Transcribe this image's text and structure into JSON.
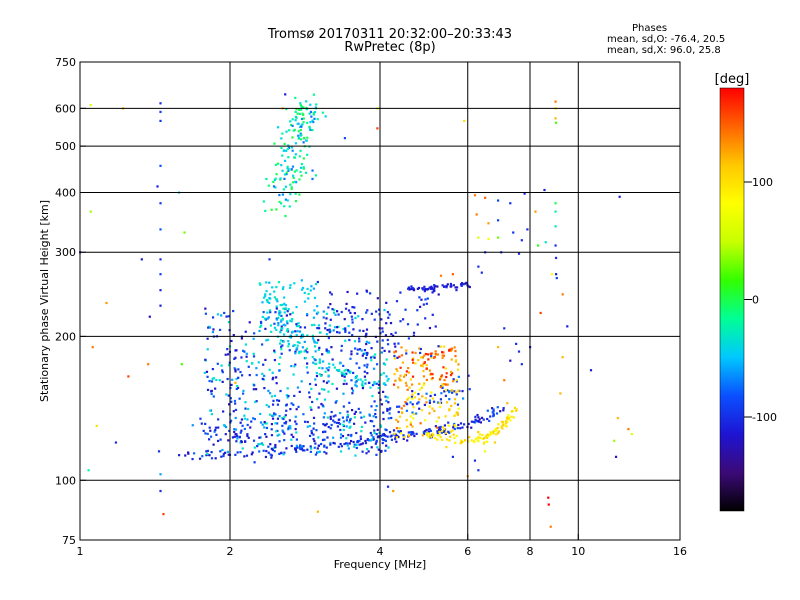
{
  "header": {
    "title_line1": "Tromsø 20170311 20:32:00–20:33:43",
    "title_line2": "RwPretec (8p)",
    "stats_title": "Phases",
    "stats_o": "mean, sd,O: -76.4, 20.5",
    "stats_x": "mean, sd,X:  96.0, 25.8"
  },
  "colorbar": {
    "unit": "[deg]",
    "min": -180,
    "max": 180,
    "ticks": [
      {
        "value": 100,
        "label": "100"
      },
      {
        "value": 0,
        "label": "0"
      },
      {
        "value": -100,
        "label": "-100"
      }
    ],
    "colormap": [
      "#000000",
      "#3c0a78",
      "#1e14d2",
      "#0a50ff",
      "#00c8ff",
      "#00ff96",
      "#32ff00",
      "#c8ff00",
      "#ffff00",
      "#ffc800",
      "#ff6400",
      "#ff0000"
    ]
  },
  "chart_data": {
    "type": "scatter",
    "xlabel": "Frequency [MHz]",
    "ylabel": "Stationary phase Virtual Height [km]",
    "xscale": "log",
    "yscale": "log",
    "xlim": [
      1,
      16
    ],
    "ylim": [
      75,
      750
    ],
    "grid": true,
    "xticks": [
      {
        "value": 1,
        "label": "1"
      },
      {
        "value": 2,
        "label": "2"
      },
      {
        "value": 4,
        "label": "4"
      },
      {
        "value": 6,
        "label": "6"
      },
      {
        "value": 8,
        "label": "8"
      },
      {
        "value": 10,
        "label": "10"
      },
      {
        "value": 16,
        "label": "16"
      }
    ],
    "yticks": [
      {
        "value": 75,
        "label": "75"
      },
      {
        "value": 100,
        "label": "100"
      },
      {
        "value": 200,
        "label": "200"
      },
      {
        "value": 300,
        "label": "300"
      },
      {
        "value": 400,
        "label": "400"
      },
      {
        "value": 500,
        "label": "500"
      },
      {
        "value": 600,
        "label": "600"
      },
      {
        "value": 750,
        "label": "750"
      }
    ],
    "xgrid": [
      2,
      4,
      6,
      8,
      10
    ],
    "ygrid": [
      100,
      200,
      300,
      400,
      500,
      600
    ],
    "color_by": "phase",
    "points": [
      [
        1.05,
        610,
        60
      ],
      [
        1.22,
        600,
        120
      ],
      [
        1.45,
        615,
        -100
      ],
      [
        1.45,
        590,
        -90
      ],
      [
        1.45,
        565,
        -95
      ],
      [
        1.45,
        455,
        -85
      ],
      [
        1.43,
        412,
        -110
      ],
      [
        1.45,
        380,
        -95
      ],
      [
        1.45,
        335,
        -80
      ],
      [
        1.45,
        290,
        -100
      ],
      [
        1.45,
        270,
        -90
      ],
      [
        1.45,
        250,
        -105
      ],
      [
        1.45,
        232,
        -110
      ],
      [
        1.58,
        400,
        -40
      ],
      [
        1.62,
        330,
        30
      ],
      [
        1.05,
        365,
        40
      ],
      [
        1.0,
        300,
        -100
      ],
      [
        1.33,
        290,
        -110
      ],
      [
        1.38,
        220,
        -120
      ],
      [
        1.37,
        175,
        140
      ],
      [
        1.25,
        165,
        160
      ],
      [
        1.06,
        190,
        140
      ],
      [
        1.13,
        235,
        130
      ],
      [
        1.6,
        175,
        20
      ],
      [
        1.08,
        130,
        100
      ],
      [
        1.04,
        105,
        -20
      ],
      [
        1.18,
        120,
        -100
      ],
      [
        1.45,
        103,
        -60
      ],
      [
        1.45,
        95,
        -100
      ],
      [
        1.47,
        85,
        160
      ],
      [
        1.44,
        115,
        -100
      ],
      [
        2.58,
        642,
        -110
      ],
      [
        2.55,
        600,
        120
      ],
      [
        3.4,
        520,
        -85
      ],
      [
        3.2,
        245,
        -100
      ],
      [
        3.0,
        260,
        -100
      ],
      [
        3.15,
        230,
        -100
      ],
      [
        3.35,
        225,
        -100
      ],
      [
        3.55,
        230,
        -100
      ],
      [
        3.95,
        600,
        60
      ],
      [
        4.25,
        95,
        130
      ],
      [
        4.15,
        97,
        -100
      ],
      [
        3.0,
        86,
        120
      ],
      [
        2.4,
        290,
        -100
      ],
      [
        2.05,
        160,
        120
      ],
      [
        2.1,
        132,
        -110
      ],
      [
        3.95,
        545,
        160
      ],
      [
        3.15,
        170,
        -100
      ],
      [
        3.45,
        170,
        -100
      ],
      [
        3.8,
        160,
        -110
      ],
      [
        5.9,
        565,
        100
      ],
      [
        6.2,
        395,
        140
      ],
      [
        6.5,
        390,
        150
      ],
      [
        6.9,
        385,
        -90
      ],
      [
        7.3,
        380,
        -100
      ],
      [
        7.8,
        398,
        -100
      ],
      [
        6.25,
        360,
        140
      ],
      [
        6.6,
        345,
        130
      ],
      [
        6.9,
        350,
        -90
      ],
      [
        7.4,
        330,
        -100
      ],
      [
        7.7,
        318,
        -100
      ],
      [
        7.9,
        335,
        -100
      ],
      [
        6.3,
        322,
        60
      ],
      [
        6.6,
        320,
        80
      ],
      [
        6.9,
        322,
        30
      ],
      [
        6.5,
        300,
        -100
      ],
      [
        7.0,
        300,
        -100
      ],
      [
        7.6,
        298,
        -100
      ],
      [
        8.3,
        310,
        10
      ],
      [
        8.6,
        315,
        -30
      ],
      [
        9.0,
        572,
        120
      ],
      [
        9.0,
        600,
        100
      ],
      [
        9.0,
        620,
        140
      ],
      [
        9.02,
        560,
        20
      ],
      [
        9.0,
        380,
        0
      ],
      [
        9.0,
        365,
        -20
      ],
      [
        9.0,
        340,
        -30
      ],
      [
        9.0,
        310,
        -100
      ],
      [
        9.02,
        292,
        -100
      ],
      [
        9.02,
        270,
        -110
      ],
      [
        9.05,
        265,
        -90
      ],
      [
        8.55,
        405,
        -110
      ],
      [
        8.2,
        365,
        130
      ],
      [
        9.3,
        245,
        140
      ],
      [
        9.5,
        210,
        -110
      ],
      [
        10.6,
        170,
        -110
      ],
      [
        12.1,
        392,
        -110
      ],
      [
        12.0,
        135,
        120
      ],
      [
        12.6,
        128,
        140
      ],
      [
        11.8,
        121,
        40
      ],
      [
        11.9,
        112,
        -120
      ],
      [
        12.8,
        125,
        60
      ],
      [
        8.7,
        92,
        180
      ],
      [
        8.72,
        89,
        190
      ],
      [
        8.8,
        80,
        140
      ],
      [
        9.3,
        181,
        120
      ],
      [
        9.2,
        152,
        120
      ],
      [
        8.4,
        224,
        160
      ],
      [
        8.85,
        270,
        80
      ],
      [
        7.5,
        193,
        -100
      ],
      [
        7.6,
        186,
        -100
      ],
      [
        6.8,
        120,
        110
      ],
      [
        6.5,
        115,
        70
      ],
      [
        6.2,
        110,
        -100
      ],
      [
        6.3,
        105,
        -100
      ],
      [
        6.0,
        102,
        130
      ],
      [
        5.6,
        112,
        -100
      ],
      [
        7.2,
        145,
        120
      ],
      [
        7.1,
        162,
        140
      ],
      [
        6.9,
        190,
        120
      ],
      [
        7.3,
        178,
        -120
      ],
      [
        7.7,
        175,
        -100
      ],
      [
        8.0,
        190,
        -110
      ],
      [
        7.1,
        208,
        -100
      ],
      [
        6.3,
        280,
        -100
      ],
      [
        6.4,
        272,
        -100
      ],
      [
        5.6,
        270,
        150
      ],
      [
        5.3,
        268,
        140
      ]
    ],
    "clusters": [
      {
        "name": "F-region-X-trace",
        "type": "curve",
        "pts": [
          [
            2.55,
            370
          ],
          [
            2.6,
            410
          ],
          [
            2.65,
            450
          ],
          [
            2.7,
            500
          ],
          [
            2.75,
            540
          ],
          [
            2.8,
            580
          ],
          [
            2.85,
            625
          ]
        ],
        "spreadX": 0.018,
        "spreadY": 0.012,
        "n": 170,
        "colors": [
          -70,
          -40,
          -20,
          0
        ]
      },
      {
        "name": "lower-trace-main",
        "type": "curve",
        "pts": [
          [
            1.6,
            113
          ],
          [
            2.0,
            113
          ],
          [
            2.5,
            114
          ],
          [
            3.0,
            117
          ],
          [
            3.5,
            120
          ],
          [
            4.0,
            123
          ],
          [
            4.5,
            125
          ],
          [
            5.0,
            126
          ],
          [
            5.5,
            128
          ],
          [
            6.0,
            131
          ],
          [
            6.5,
            136
          ],
          [
            7.0,
            142
          ]
        ],
        "spreadX": 0.006,
        "spreadY": 0.006,
        "n": 200,
        "colors": [
          -120,
          -110,
          -100,
          -90,
          -80
        ]
      },
      {
        "name": "lower-trace-upper",
        "type": "curve",
        "pts": [
          [
            1.7,
            128
          ],
          [
            2.0,
            126
          ],
          [
            2.5,
            128
          ],
          [
            3.0,
            130
          ],
          [
            3.5,
            135
          ],
          [
            4.0,
            140
          ],
          [
            4.5,
            143
          ],
          [
            5.0,
            148
          ],
          [
            5.5,
            152
          ],
          [
            6.0,
            158
          ]
        ],
        "spreadX": 0.01,
        "spreadY": 0.012,
        "n": 130,
        "colors": [
          -110,
          -100,
          -90,
          -70
        ]
      },
      {
        "name": "diffuse-mid",
        "type": "region",
        "xlog": [
          0.25,
          0.62
        ],
        "ylog": [
          2.05,
          2.36
        ],
        "n": 650,
        "colors": [
          -120,
          -110,
          -100,
          -90,
          -80,
          -60,
          -40,
          -30
        ]
      },
      {
        "name": "x-trace-mid",
        "type": "curve",
        "pts": [
          [
            2.4,
            250
          ],
          [
            2.5,
            230
          ],
          [
            2.6,
            210
          ],
          [
            2.7,
            195
          ],
          [
            2.8,
            185
          ],
          [
            3.0,
            175
          ],
          [
            3.3,
            168
          ],
          [
            3.6,
            163
          ],
          [
            4.0,
            160
          ]
        ],
        "spreadX": 0.01,
        "spreadY": 0.01,
        "n": 90,
        "colors": [
          -60,
          -40,
          -30
        ]
      },
      {
        "name": "yellow-blob-upper",
        "type": "region",
        "xlog": [
          0.63,
          0.76
        ],
        "ylog": [
          2.2,
          2.28
        ],
        "n": 110,
        "colors": [
          100,
          110,
          120,
          130,
          140,
          160,
          170
        ]
      },
      {
        "name": "yellow-blob-lower",
        "type": "region",
        "xlog": [
          0.63,
          0.76
        ],
        "ylog": [
          2.09,
          2.2
        ],
        "n": 90,
        "colors": [
          80,
          100,
          110,
          120,
          140
        ]
      },
      {
        "name": "yellow-trace",
        "type": "curve",
        "pts": [
          [
            5.0,
            124
          ],
          [
            5.5,
            122
          ],
          [
            6.0,
            121
          ],
          [
            6.5,
            123
          ],
          [
            7.0,
            128
          ],
          [
            7.3,
            135
          ],
          [
            7.4,
            142
          ]
        ],
        "spreadX": 0.006,
        "spreadY": 0.006,
        "n": 90,
        "colors": [
          80,
          90,
          100,
          110
        ]
      },
      {
        "name": "band-250",
        "type": "curve",
        "pts": [
          [
            4.5,
            252
          ],
          [
            5.0,
            252
          ],
          [
            5.5,
            254
          ],
          [
            6.0,
            257
          ]
        ],
        "spreadX": 0.004,
        "spreadY": 0.003,
        "n": 55,
        "colors": [
          -120,
          -110,
          -100
        ]
      },
      {
        "name": "mid-right-scatter",
        "type": "region",
        "xlog": [
          0.48,
          0.72
        ],
        "ylog": [
          2.25,
          2.4
        ],
        "n": 90,
        "colors": [
          -120,
          -110,
          -100,
          -90
        ]
      },
      {
        "name": "upper-left-cyan",
        "type": "region",
        "xlog": [
          0.36,
          0.48
        ],
        "ylog": [
          2.28,
          2.42
        ],
        "n": 80,
        "colors": [
          -50,
          -40,
          -30
        ]
      }
    ]
  }
}
